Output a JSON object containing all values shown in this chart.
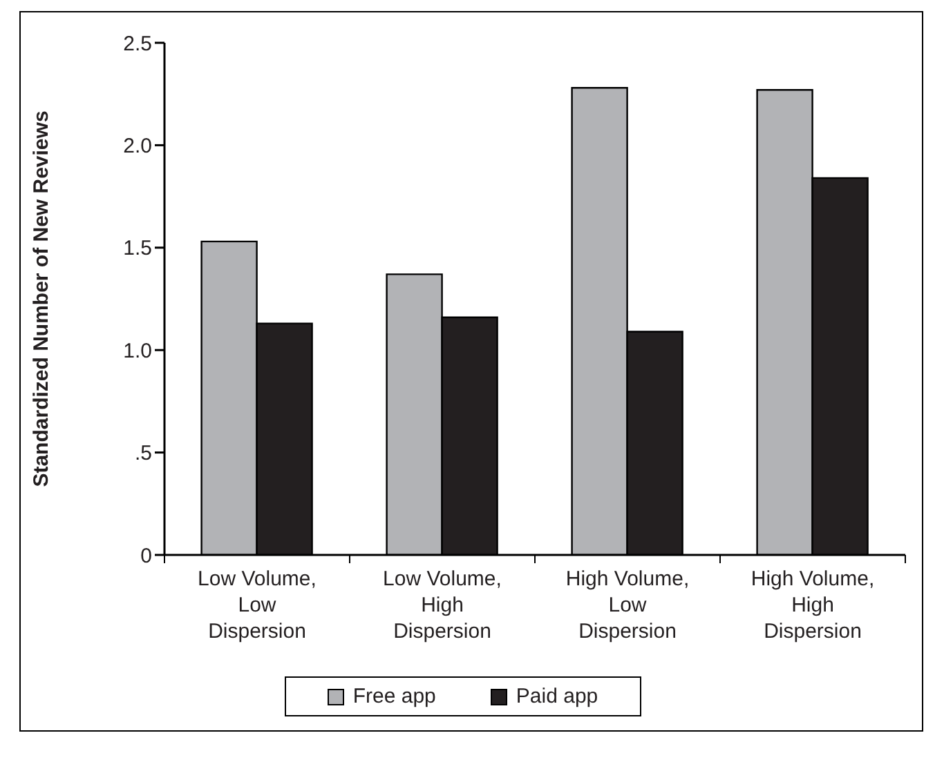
{
  "chart_data": {
    "type": "bar",
    "ylabel": "Standardized Number of New Reviews",
    "categories": [
      "Low Volume, Low Dispersion",
      "Low Volume, High Dispersion",
      "High Volume, Low Dispersion",
      "High Volume, High Dispersion"
    ],
    "series": [
      {
        "name": "Free app",
        "color": "#b2b3b6",
        "values": [
          1.53,
          1.37,
          2.28,
          2.27
        ]
      },
      {
        "name": "Paid app",
        "color": "#231f20",
        "values": [
          1.13,
          1.16,
          1.09,
          1.84
        ]
      }
    ],
    "ylim": [
      0,
      2.5
    ],
    "yticks": [
      0,
      {
        "value": 0.5,
        "label": ".5"
      },
      {
        "value": 1,
        "label": "1.0"
      },
      1.5,
      {
        "value": 2,
        "label": "2.0"
      },
      2.5
    ],
    "grid": false,
    "legend": "bottom"
  }
}
